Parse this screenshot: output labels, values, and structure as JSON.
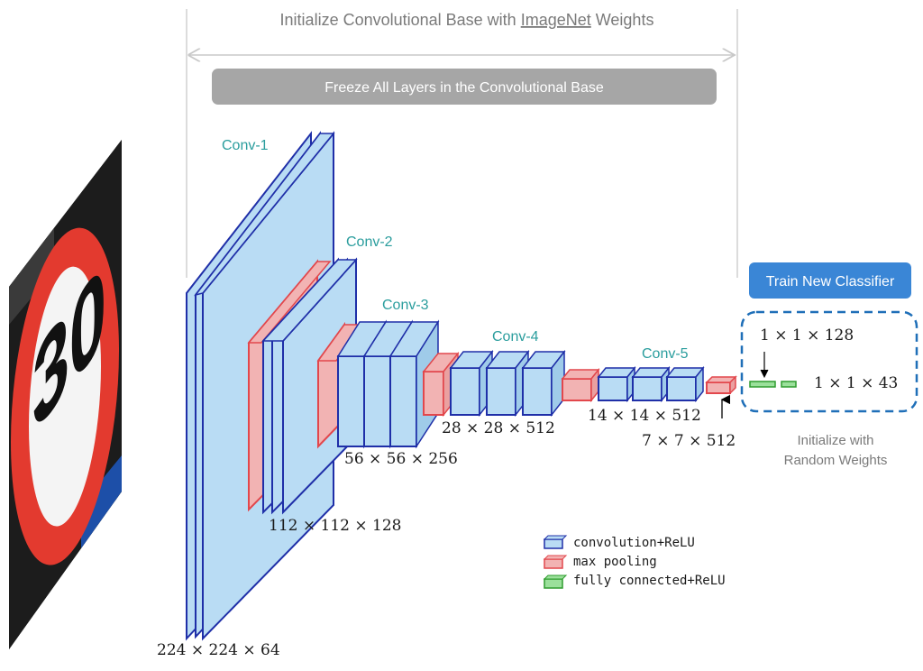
{
  "header": {
    "title_before": "Initialize Convolutional Base with ",
    "title_link": "ImageNet",
    "title_after": " Weights",
    "freeze_banner": "Freeze All Layers in the Convolutional Base"
  },
  "stages": {
    "conv1": "Conv-1",
    "conv2": "Conv-2",
    "conv3": "Conv-3",
    "conv4": "Conv-4",
    "conv5": "Conv-5"
  },
  "dims": {
    "d1": "224 × 224 × 64",
    "d2": "112 × 112 × 128",
    "d3": "56 × 56 × 256",
    "d4": "28 × 28 × 512",
    "d5": "14 × 14 × 512",
    "d6": "7 × 7 × 512",
    "fc1": "1 × 1 × 128",
    "fc2": "1 × 1 × 43"
  },
  "classifier": {
    "button": "Train New Classifier",
    "note_line1": "Initialize with",
    "note_line2": "Random Weights"
  },
  "legend": {
    "conv": "convolution+ReLU",
    "pool": "max pooling",
    "fc": "fully connected+ReLU"
  },
  "sign": {
    "text": "30"
  },
  "colors": {
    "conv_fill": "#b9dcf4",
    "conv_edge": "#1f2fa8",
    "pool_fill": "#f2b3b3",
    "pool_edge": "#e2474c",
    "fc_fill": "#9be09b",
    "fc_edge": "#2e9c2e",
    "stage_label": "#2a9d9d",
    "button_blue": "#3a86d6",
    "banner_grey": "#a6a6a6",
    "dashed_blue": "#1f6fb8"
  }
}
